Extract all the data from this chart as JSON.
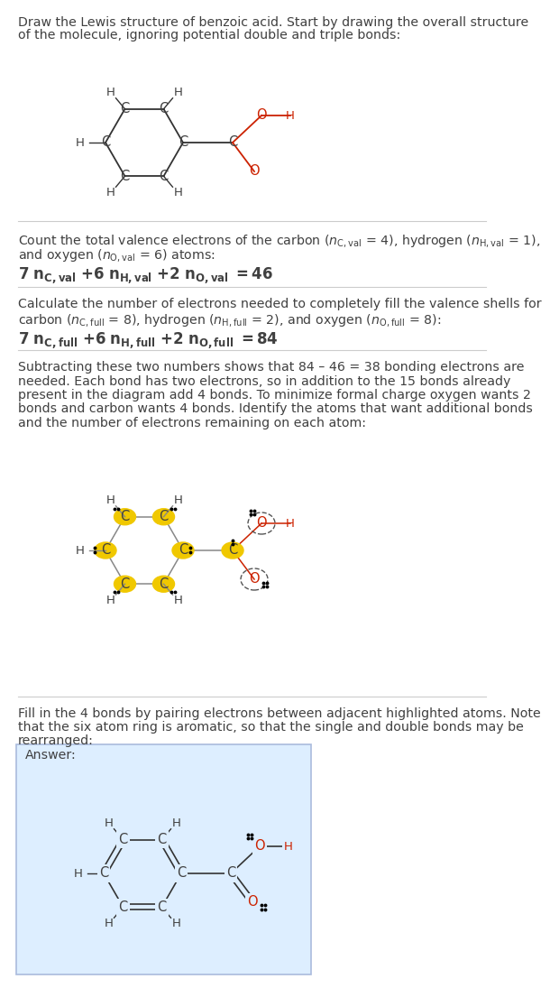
{
  "title_text1": "Draw the Lewis structure of benzoic acid. Start by drawing the overall structure",
  "title_text2": "of the molecule, ignoring potential double and triple bonds:",
  "sec2_line1": "Count the total valence electrons of the carbon (",
  "sec2_line2": "and oxygen (",
  "sec2_line3": ") atoms:",
  "sec2_eq": "7 n_{C,val} + 6 n_{H,val} + 2 n_{O,val} = 46",
  "sec3_line1": "Calculate the number of electrons needed to completely fill the valence shells for",
  "sec3_line2": "carbon (",
  "sec3_line3": " = 8), hydrogen (",
  "sec3_line4": " = 2), and oxygen (",
  "sec3_line5": " = 8):",
  "sec3_eq": "7 n_{C,full} + 6 n_{H,full} + 2 n_{O,full} = 84",
  "sec4_lines": [
    "Subtracting these two numbers shows that 84 – 46 = 38 bonding electrons are",
    "needed. Each bond has two electrons, so in addition to the 15 bonds already",
    "present in the diagram add 4 bonds. To minimize formal charge oxygen wants 2",
    "bonds and carbon wants 4 bonds. Identify the atoms that want additional bonds",
    "and the number of electrons remaining on each atom:"
  ],
  "sec5_line1": "Fill in the 4 bonds by pairing electrons between adjacent highlighted atoms. Note",
  "sec5_line2": "that the six atom ring is aromatic, so that the single and double bonds may be",
  "sec5_line3": "rearranged:",
  "answer_label": "Answer:",
  "bg_color": "#ffffff",
  "text_color": "#404040",
  "red_color": "#cc2200",
  "yellow_color": "#f0c800",
  "answer_box_bg": "#ddeeff",
  "answer_box_border": "#aabbdd",
  "divider_color": "#cccccc",
  "bond_color": "#333333",
  "gray_bond": "#888888"
}
